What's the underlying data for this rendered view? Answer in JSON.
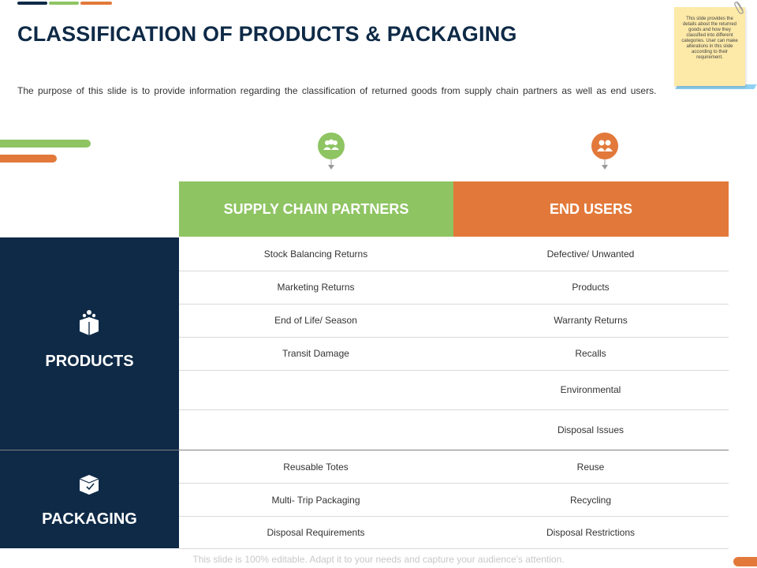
{
  "title": "CLASSIFICATION OF PRODUCTS & PACKAGING",
  "subtitle": "The purpose of this slide is to provide information regarding the classification of returned goods from supply chain partners as well as end users.",
  "note": "This slide provides the details about the returned goods and how they classified into different categories. User can make alterations in this slide according to their requirement.",
  "colors": {
    "navy": "#0e2a47",
    "green": "#8ec462",
    "orange": "#e2793a"
  },
  "columns": [
    {
      "label": "SUPPLY CHAIN PARTNERS",
      "icon": "people-group-icon"
    },
    {
      "label": "END USERS",
      "icon": "users-icon"
    }
  ],
  "sections": [
    {
      "label": "PRODUCTS",
      "icon": "open-box-icon",
      "rows": [
        {
          "left": "Stock Balancing Returns",
          "right": "Defective/ Unwanted"
        },
        {
          "left": "Marketing Returns",
          "right": "Products"
        },
        {
          "left": "End of Life/ Season",
          "right": "Warranty Returns"
        },
        {
          "left": "Transit Damage",
          "right": "Recalls"
        },
        {
          "left": "",
          "right": "Environmental"
        },
        {
          "left": "",
          "right": "Disposal Issues"
        }
      ]
    },
    {
      "label": "PACKAGING",
      "icon": "package-check-icon",
      "rows": [
        {
          "left": "Reusable Totes",
          "right": "Reuse"
        },
        {
          "left": "Multi- Trip Packaging",
          "right": "Recycling"
        },
        {
          "left": "Disposal Requirements",
          "right": "Disposal Restrictions"
        }
      ]
    }
  ],
  "footer": "This slide is 100% editable. Adapt it to your needs and capture your audience's attention."
}
